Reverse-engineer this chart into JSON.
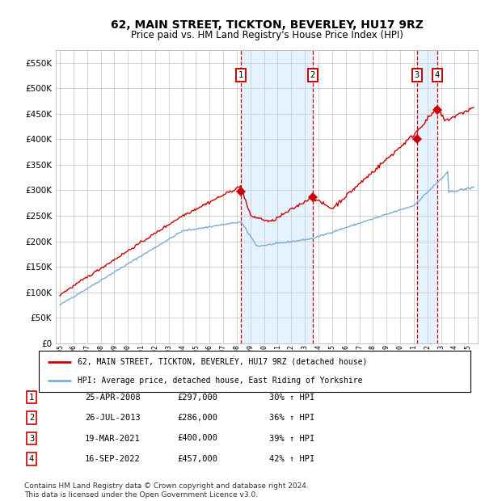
{
  "title": "62, MAIN STREET, TICKTON, BEVERLEY, HU17 9RZ",
  "subtitle": "Price paid vs. HM Land Registry's House Price Index (HPI)",
  "title_fontsize": 10,
  "subtitle_fontsize": 8.5,
  "ylabel_vals": [
    0,
    50000,
    100000,
    150000,
    200000,
    250000,
    300000,
    350000,
    400000,
    450000,
    500000,
    550000
  ],
  "ylabel_labels": [
    "£0",
    "£50K",
    "£100K",
    "£150K",
    "£200K",
    "£250K",
    "£300K",
    "£350K",
    "£400K",
    "£450K",
    "£500K",
    "£550K"
  ],
  "xlim_start": 1994.7,
  "xlim_end": 2025.7,
  "ylim": [
    0,
    575000
  ],
  "red_line_color": "#cc0000",
  "blue_line_color": "#7aaed6",
  "background_color": "#ffffff",
  "grid_color": "#cccccc",
  "shade_color": "#ddeeff",
  "transactions": [
    {
      "num": 1,
      "date": "25-APR-2008",
      "price": 297000,
      "pct": "30%",
      "year": 2008.32
    },
    {
      "num": 2,
      "date": "26-JUL-2013",
      "price": 286000,
      "pct": "36%",
      "year": 2013.57
    },
    {
      "num": 3,
      "date": "19-MAR-2021",
      "price": 400000,
      "pct": "39%",
      "year": 2021.22
    },
    {
      "num": 4,
      "date": "16-SEP-2022",
      "price": 457000,
      "pct": "42%",
      "year": 2022.71
    }
  ],
  "legend_line1": "62, MAIN STREET, TICKTON, BEVERLEY, HU17 9RZ (detached house)",
  "legend_line2": "HPI: Average price, detached house, East Riding of Yorkshire",
  "footer": "Contains HM Land Registry data © Crown copyright and database right 2024.\nThis data is licensed under the Open Government Licence v3.0.",
  "footer_fontsize": 6.5
}
